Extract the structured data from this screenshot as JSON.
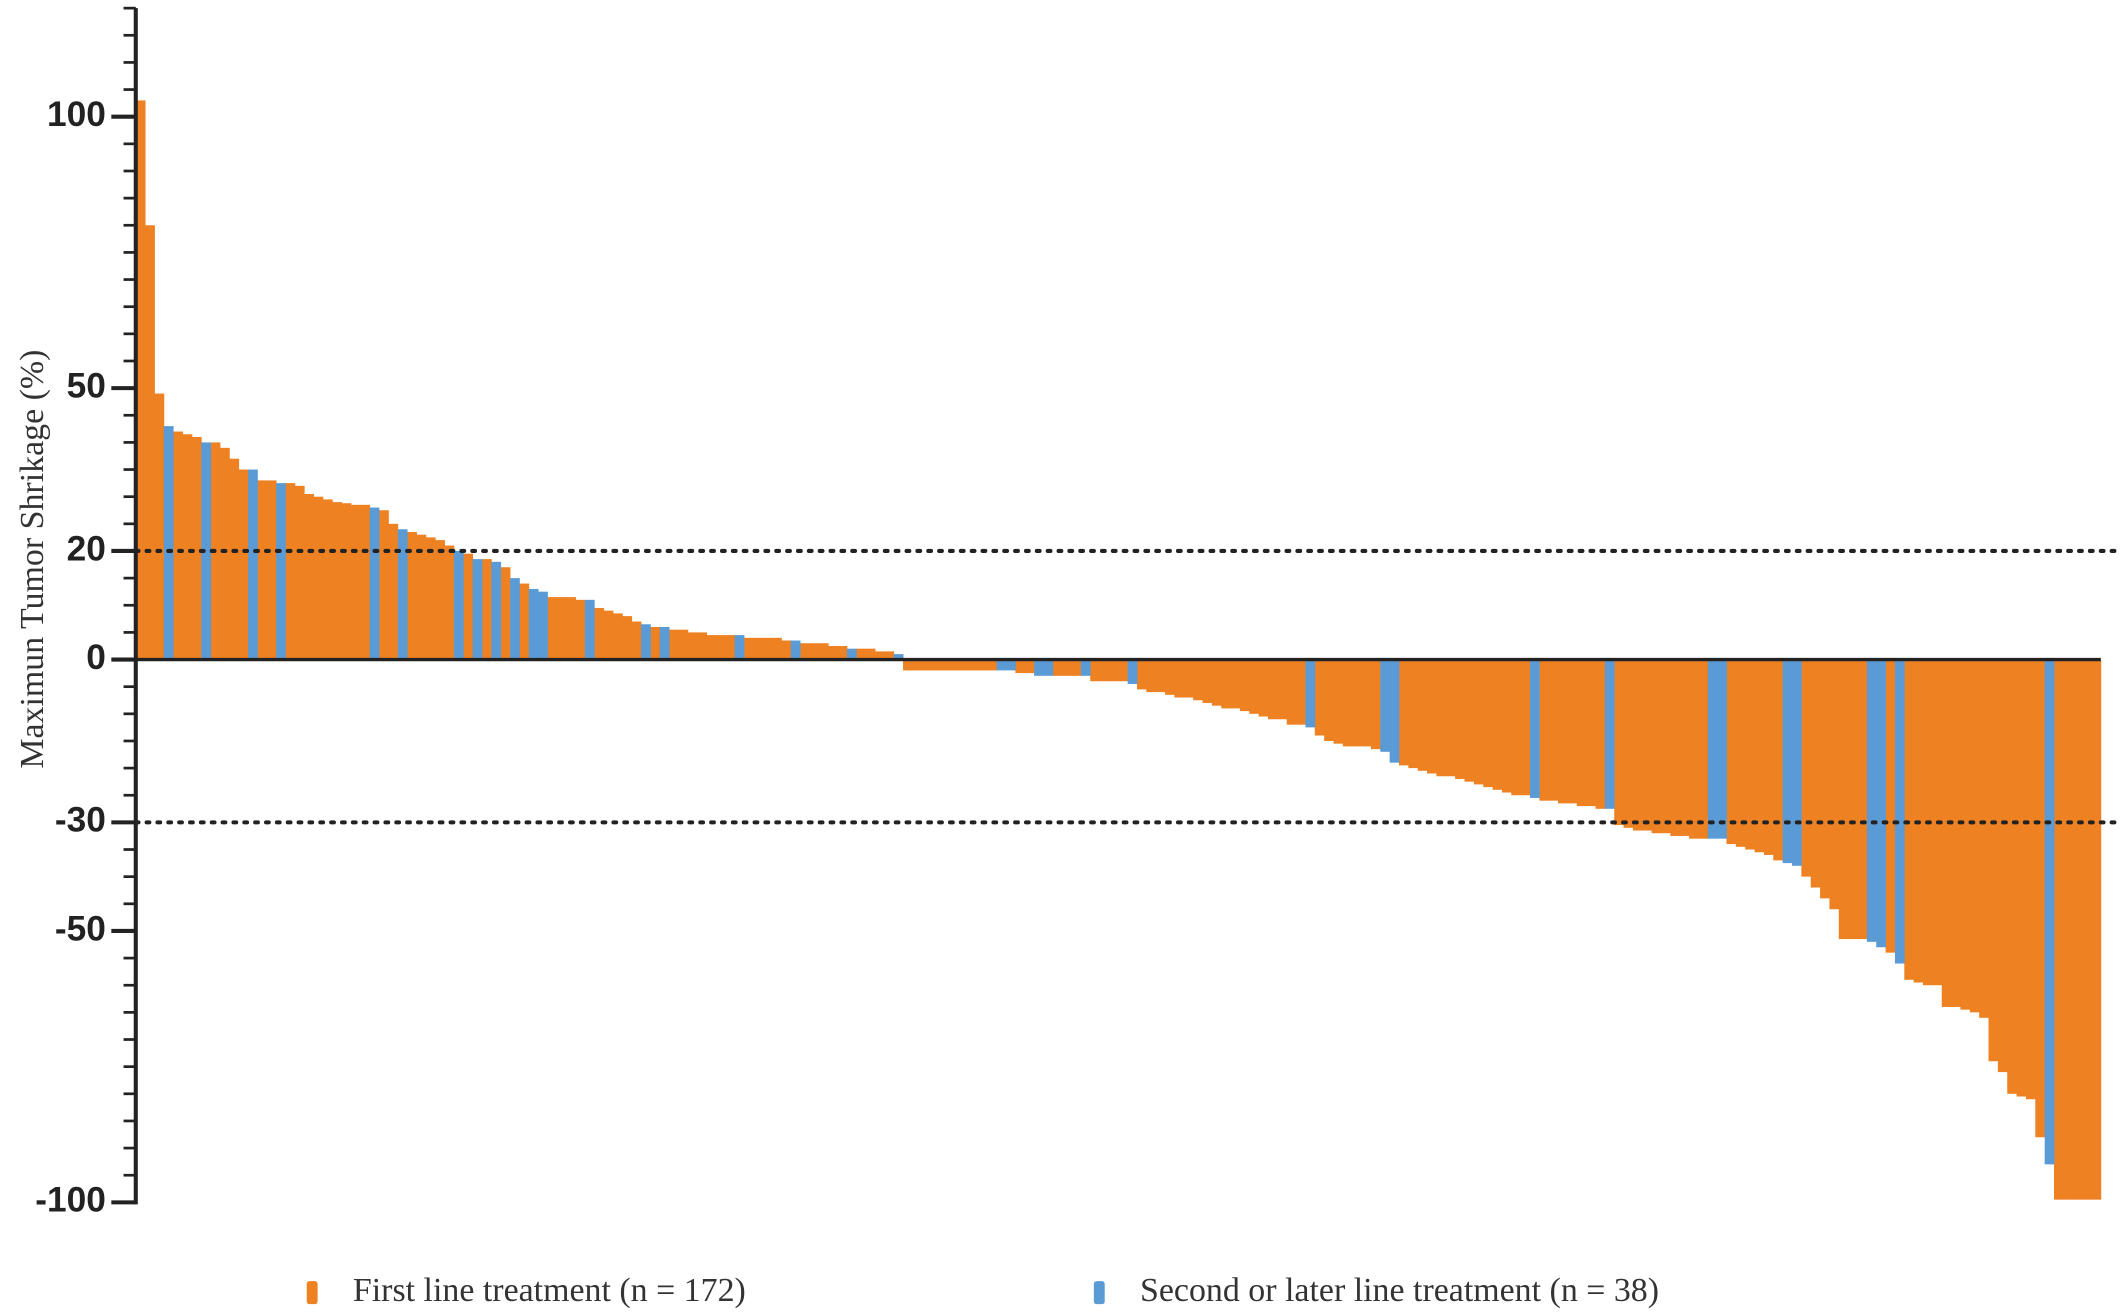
{
  "chart_data": {
    "type": "waterfall",
    "y_label": "Maximun Tumor Shrikage (%)",
    "ylim": [
      -100,
      120
    ],
    "yticks": [
      -100,
      -50,
      -30,
      0,
      20,
      50,
      100
    ],
    "minor_yticks": [
      -95,
      -90,
      -85,
      -80,
      -75,
      -70,
      -65,
      -60,
      -55,
      -45,
      -40,
      -35,
      -25,
      -20,
      -15,
      -10,
      -5,
      5,
      10,
      15,
      25,
      30,
      35,
      40,
      45,
      55,
      60,
      65,
      70,
      75,
      80,
      85,
      90,
      95,
      105,
      110,
      115,
      120
    ],
    "reference_lines": [
      20,
      -30
    ],
    "legend": "bottom",
    "series": [
      {
        "name": "First line treatment (n = 172)",
        "color": "#ee8122",
        "values": [
          103,
          80,
          49,
          null,
          42,
          41.5,
          41,
          null,
          40,
          39,
          37,
          35,
          null,
          33,
          33,
          null,
          32.5,
          32,
          30.5,
          30,
          29.5,
          29,
          28.8,
          28.5,
          28.5,
          null,
          27.5,
          25,
          null,
          23.5,
          23,
          22.5,
          22,
          21,
          null,
          19.5,
          null,
          18.5,
          null,
          17,
          null,
          14,
          null,
          null,
          11.5,
          11.5,
          11.5,
          11,
          null,
          9.5,
          9,
          8.5,
          8,
          7,
          null,
          6,
          null,
          5.5,
          5.5,
          5,
          5,
          4.5,
          4.5,
          4.5,
          null,
          4,
          4,
          4,
          4,
          3.5,
          null,
          3,
          3,
          3,
          2.5,
          2.5,
          null,
          2,
          2,
          1.5,
          1.5,
          null,
          -2,
          -2,
          -2,
          -2,
          -2,
          -2,
          -2,
          -2,
          -2,
          -2,
          null,
          null,
          -2.5,
          -2.5,
          null,
          null,
          -3,
          -3,
          -3,
          null,
          -4,
          -4,
          -4,
          -4,
          null,
          -5.5,
          -6,
          -6,
          -6.5,
          -7,
          -7,
          -7.5,
          -8,
          -8.5,
          -9,
          -9,
          -9.5,
          -10,
          -10.5,
          -11,
          -11,
          -12,
          -12,
          null,
          -14,
          -15,
          -15.5,
          -16,
          -16,
          -16,
          -16.5,
          null,
          null,
          -19.5,
          -20,
          -20.5,
          -21,
          -21.5,
          -21.5,
          -22,
          -22.5,
          -23,
          -23.5,
          -24,
          -24.5,
          -25,
          -25,
          null,
          -26,
          -26,
          -26.5,
          -26.5,
          -27,
          -27,
          -27.5,
          null,
          -30.5,
          -31,
          -31.5,
          -31.5,
          -32,
          -32,
          -32.5,
          -32.5,
          -33,
          -33,
          null,
          null,
          -34,
          -34.5,
          -35,
          -35.5,
          -36,
          -37,
          null,
          null,
          -40,
          -42,
          -44,
          -46,
          -51.5,
          -51.5,
          -51.5,
          null,
          null,
          -54,
          null,
          -59,
          -59.5,
          -60,
          -60,
          -64,
          -64,
          -64.5,
          -65,
          -66,
          -74,
          -76,
          -80,
          -80.5,
          -81,
          -88,
          null,
          -99.5,
          -99.5,
          -99.5,
          -99.5,
          -99.5
        ]
      },
      {
        "name": "Second or later line treatment (n = 38)",
        "color": "#5b9bd5",
        "values": [
          null,
          null,
          null,
          43,
          null,
          null,
          null,
          40,
          null,
          null,
          null,
          null,
          35,
          null,
          null,
          32.5,
          null,
          null,
          null,
          null,
          null,
          null,
          null,
          null,
          null,
          28,
          null,
          null,
          24,
          null,
          null,
          null,
          null,
          null,
          20,
          null,
          18.5,
          null,
          18,
          null,
          15,
          null,
          13,
          12.5,
          null,
          null,
          null,
          null,
          11,
          null,
          null,
          null,
          null,
          null,
          6.5,
          null,
          6,
          null,
          null,
          null,
          null,
          null,
          null,
          null,
          4.5,
          null,
          null,
          null,
          null,
          null,
          3.5,
          null,
          null,
          null,
          null,
          null,
          2,
          null,
          null,
          null,
          null,
          1,
          null,
          null,
          null,
          null,
          null,
          null,
          null,
          null,
          null,
          null,
          -2,
          -2,
          null,
          null,
          -3,
          -3,
          null,
          null,
          null,
          -3,
          null,
          null,
          null,
          null,
          -4.5,
          null,
          null,
          null,
          null,
          null,
          null,
          null,
          null,
          null,
          null,
          null,
          null,
          null,
          null,
          null,
          null,
          null,
          null,
          -12.5,
          null,
          null,
          null,
          null,
          null,
          null,
          null,
          -17,
          -19,
          null,
          null,
          null,
          null,
          null,
          null,
          null,
          null,
          null,
          null,
          null,
          null,
          null,
          null,
          -25.5,
          null,
          null,
          null,
          null,
          null,
          null,
          null,
          -27.5,
          null,
          null,
          null,
          null,
          null,
          null,
          null,
          null,
          null,
          null,
          -33,
          -33,
          null,
          null,
          null,
          null,
          null,
          null,
          -37.5,
          -38,
          null,
          null,
          null,
          null,
          null,
          null,
          null,
          -52,
          -53,
          null,
          -56,
          null,
          null,
          null,
          null,
          null,
          null,
          null,
          null,
          null,
          null,
          null,
          null,
          null,
          null,
          null,
          -93,
          null,
          null,
          null,
          null,
          null
        ]
      }
    ]
  }
}
